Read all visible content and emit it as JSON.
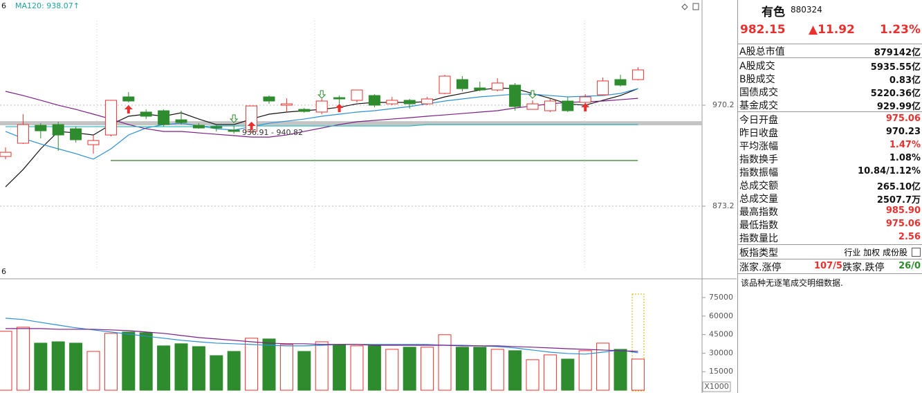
{
  "chart_data": [
    {
      "type": "candlestick",
      "header_tags": [
        "6",
        "MA120: 938.07↑"
      ],
      "footer_tag": "6",
      "annotation": "936.91 - 940.82",
      "up_color": "#e8312f",
      "down_color": "#2e8b2e",
      "ylim": [
        808.8,
        1071.2
      ],
      "yticks": [
        873.2,
        970.2
      ],
      "grid": true,
      "open": [
        921.0,
        933.7,
        950.9,
        951.6,
        947.6,
        932.3,
        941.6,
        978.2,
        963.6,
        964.9,
        956.2,
        950.9,
        949.6,
        946.3,
        945.0,
        978.2,
        970.2,
        966.2,
        963.6,
        977.5,
        974.9,
        979.5,
        971.5,
        974.9,
        971.5,
        981.5,
        994.8,
        986.8,
        984.8,
        989.5,
        966.2,
        964.9,
        974.2,
        972.9,
        980.2,
        994.8,
        994.8
      ],
      "close": [
        925.0,
        951.6,
        945.6,
        941.6,
        937.0,
        936.3,
        974.9,
        974.2,
        959.6,
        951.6,
        953.6,
        948.3,
        948.3,
        945.0,
        969.5,
        974.2,
        971.5,
        964.2,
        974.2,
        976.2,
        984.8,
        970.2,
        974.9,
        971.5,
        976.2,
        998.1,
        986.1,
        984.8,
        991.5,
        968.9,
        971.5,
        974.2,
        964.9,
        978.2,
        993.5,
        989.5,
        1004.1
      ],
      "high": [
        929.7,
        961.6,
        952.9,
        954.3,
        949.6,
        941.0,
        974.9,
        982.8,
        966.2,
        966.2,
        964.9,
        952.9,
        951.6,
        950.3,
        969.5,
        979.5,
        976.8,
        967.5,
        976.2,
        979.5,
        984.8,
        980.8,
        978.2,
        976.2,
        978.2,
        999.4,
        998.1,
        992.8,
        996.1,
        991.5,
        974.9,
        976.2,
        978.2,
        980.8,
        996.8,
        999.4,
        1006.7
      ],
      "low": [
        918.4,
        933.0,
        938.3,
        926.4,
        934.3,
        923.7,
        940.3,
        972.9,
        956.9,
        949.6,
        951.6,
        947.6,
        945.0,
        943.0,
        943.6,
        971.5,
        963.6,
        962.9,
        961.6,
        971.5,
        972.9,
        968.2,
        970.2,
        966.9,
        970.2,
        980.8,
        983.5,
        983.5,
        983.5,
        964.9,
        966.2,
        963.6,
        963.6,
        971.5,
        979.5,
        988.1,
        994.1
      ],
      "lines": [
        {
          "color": "#111111",
          "values": [
            891.8,
            908.4,
            928.3,
            945.0,
            943.6,
            941.6,
            951.6,
            959.6,
            961.6,
            959.6,
            962.9,
            956.9,
            951.6,
            951.6,
            956.9,
            961.6,
            963.6,
            964.9,
            966.2,
            968.2,
            971.5,
            972.9,
            972.9,
            972.9,
            973.5,
            978.2,
            981.5,
            984.8,
            986.8,
            986.1,
            981.5,
            976.8,
            971.5,
            970.2,
            974.9,
            979.5,
            986.1
          ]
        },
        {
          "color": "#2a8fd6",
          "values": [
            945.0,
            938.3,
            933.0,
            928.3,
            923.7,
            918.4,
            928.3,
            941.6,
            948.3,
            951.6,
            952.9,
            950.3,
            947.6,
            946.3,
            949.6,
            952.9,
            954.9,
            956.9,
            959.6,
            961.6,
            963.6,
            964.9,
            966.9,
            968.9,
            971.5,
            974.2,
            976.2,
            978.2,
            979.5,
            980.8,
            980.8,
            979.5,
            978.2,
            978.8,
            979.5,
            981.5,
            986.1
          ]
        },
        {
          "color": "#7a1f86",
          "values": [
            983.5,
            979.5,
            974.9,
            970.2,
            966.2,
            961.6,
            956.9,
            951.6,
            947.6,
            945.0,
            945.0,
            943.6,
            942.3,
            941.0,
            939.6,
            939.6,
            941.6,
            945.0,
            948.3,
            951.6,
            954.3,
            955.6,
            956.9,
            958.2,
            959.6,
            960.9,
            962.2,
            963.6,
            964.9,
            967.5,
            969.5,
            971.5,
            972.9,
            973.5,
            974.2,
            975.5,
            976.8
          ]
        },
        {
          "color": "#20b4b4",
          "values": [
            949.6,
            949.6,
            949.6,
            949.6,
            949.6,
            949.6,
            949.6,
            949.6,
            949.6,
            949.6,
            949.6,
            949.6,
            950.3,
            950.3,
            950.3,
            950.3,
            950.3,
            950.3,
            950.3,
            950.3,
            950.3,
            950.3,
            950.3,
            950.3,
            951.6,
            951.6,
            951.6,
            951.6,
            951.6,
            951.6,
            951.6,
            951.6,
            951.6,
            951.6,
            951.6,
            951.6,
            951.6
          ]
        }
      ],
      "support_band": {
        "value": 952.9,
        "color": "#c4c4c4"
      },
      "level_line": {
        "value": 917.1,
        "color": "#2a7a2a"
      }
    },
    {
      "type": "bar",
      "unit_label": "X1000",
      "ylim": [
        0,
        89000
      ],
      "yticks": [
        15000,
        30000,
        45000,
        60000,
        75000
      ],
      "values": [
        47700,
        51000,
        38100,
        39200,
        38100,
        31400,
        46000,
        47100,
        46500,
        35900,
        37600,
        35300,
        28000,
        31400,
        42100,
        41500,
        37000,
        31400,
        39200,
        37000,
        35900,
        35900,
        33100,
        34800,
        34800,
        44900,
        34800,
        34800,
        33100,
        32000,
        24700,
        28600,
        25200,
        32000,
        38100,
        33100,
        25200
      ],
      "lines": [
        {
          "color": "#2a8fd6",
          "values": [
            58300,
            57200,
            54900,
            52700,
            50500,
            48800,
            47100,
            45400,
            43700,
            42100,
            40400,
            39200,
            38100,
            37600,
            37000,
            36400,
            35900,
            35900,
            36400,
            37000,
            37000,
            37000,
            37000,
            37000,
            37000,
            36400,
            36400,
            35900,
            35300,
            34200,
            32500,
            30800,
            29700,
            29200,
            30800,
            32500,
            30300
          ]
        },
        {
          "color": "#7a1f86",
          "values": [
            49900,
            49900,
            49900,
            49300,
            49300,
            49300,
            48800,
            48200,
            47100,
            46000,
            44300,
            42600,
            41500,
            40400,
            39200,
            38100,
            37600,
            37600,
            37000,
            37000,
            37000,
            36400,
            36400,
            36400,
            36400,
            36400,
            35900,
            35900,
            35900,
            35300,
            34800,
            34200,
            33600,
            33100,
            32500,
            32000,
            31400
          ]
        }
      ]
    }
  ],
  "quote": {
    "name": "有色",
    "code": "880324",
    "price": "982.15",
    "change": "▲11.92",
    "change_pct": "1.23%",
    "groups": [
      [
        {
          "label": "A股总市值",
          "value": "879142亿",
          "color": "#111"
        }
      ],
      [
        {
          "label": "A股成交",
          "value": "5935.55亿",
          "color": "#111"
        },
        {
          "label": "B股成交",
          "value": "0.83亿",
          "color": "#111"
        },
        {
          "label": "国债成交",
          "value": "5220.36亿",
          "color": "#111"
        },
        {
          "label": "基金成交",
          "value": "929.99亿",
          "color": "#111"
        }
      ],
      [
        {
          "label": "今日开盘",
          "value": "975.06",
          "color": "#e8312f"
        },
        {
          "label": "昨日收盘",
          "value": "970.23",
          "color": "#111"
        },
        {
          "label": "平均涨幅",
          "value": "1.47%",
          "color": "#e8312f"
        },
        {
          "label": "指数换手",
          "value": "1.08%",
          "color": "#111"
        },
        {
          "label": "指数振幅",
          "value": "10.84/1.12%",
          "color": "#111"
        },
        {
          "label": "总成交额",
          "value": "265.10亿",
          "color": "#111"
        },
        {
          "label": "总成交量",
          "value": "2507.7万",
          "color": "#111"
        },
        {
          "label": "最高指数",
          "value": "985.90",
          "color": "#e8312f"
        },
        {
          "label": "最低指数",
          "value": "975.06",
          "color": "#e8312f"
        },
        {
          "label": "指数量比",
          "value": "2.56",
          "color": "#e8312f"
        }
      ]
    ],
    "type_row": {
      "label": "板指类型",
      "value": "行业 加权 成份股"
    },
    "breadth": {
      "up_label": "涨家.涨停",
      "up_value": "107/5",
      "down_label": "跌家.跌停",
      "down_value": "26/0"
    },
    "note": "该品种无逐笔成交明细数据."
  }
}
